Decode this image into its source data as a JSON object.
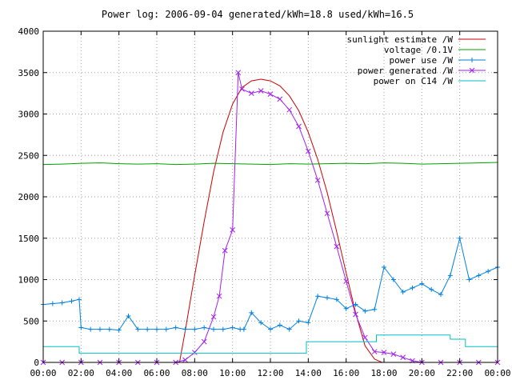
{
  "chart_data": {
    "type": "line",
    "title": "Power log: 2006-09-04 generated/kWh=18.8 used/kWh=16.5",
    "xlabel": "",
    "ylabel": "",
    "xlim": [
      0,
      24
    ],
    "ylim": [
      0,
      4000
    ],
    "x_ticks": [
      {
        "value": 0,
        "label": "00:00"
      },
      {
        "value": 2,
        "label": "02:00"
      },
      {
        "value": 4,
        "label": "04:00"
      },
      {
        "value": 6,
        "label": "06:00"
      },
      {
        "value": 8,
        "label": "08:00"
      },
      {
        "value": 10,
        "label": "10:00"
      },
      {
        "value": 12,
        "label": "12:00"
      },
      {
        "value": 14,
        "label": "14:00"
      },
      {
        "value": 16,
        "label": "16:00"
      },
      {
        "value": 18,
        "label": "18:00"
      },
      {
        "value": 20,
        "label": "20:00"
      },
      {
        "value": 22,
        "label": "22:00"
      },
      {
        "value": 24,
        "label": "00:00"
      }
    ],
    "y_ticks": [
      {
        "value": 0,
        "label": "0"
      },
      {
        "value": 500,
        "label": "500"
      },
      {
        "value": 1000,
        "label": "1000"
      },
      {
        "value": 1500,
        "label": "1500"
      },
      {
        "value": 2000,
        "label": "2000"
      },
      {
        "value": 2500,
        "label": "2500"
      },
      {
        "value": 3000,
        "label": "3000"
      },
      {
        "value": 3500,
        "label": "3500"
      },
      {
        "value": 4000,
        "label": "4000"
      }
    ],
    "grid": true,
    "legend_position": "top-right",
    "series": [
      {
        "name": "sunlight estimate /W",
        "style": "line",
        "color": "#cc0000",
        "x": [
          7.2,
          7.5,
          8.0,
          8.5,
          9.0,
          9.5,
          10.0,
          10.5,
          11.0,
          11.5,
          12.0,
          12.5,
          13.0,
          13.5,
          14.0,
          14.5,
          15.0,
          15.5,
          16.0,
          16.5,
          17.0,
          17.5,
          17.9
        ],
        "y": [
          0,
          380,
          1050,
          1700,
          2300,
          2780,
          3120,
          3320,
          3400,
          3420,
          3400,
          3340,
          3220,
          3040,
          2780,
          2450,
          2050,
          1580,
          1080,
          600,
          200,
          40,
          0
        ]
      },
      {
        "name": "voltage /0.1V",
        "style": "line",
        "color": "#00a000",
        "x": [
          0,
          1,
          2,
          3,
          4,
          5,
          6,
          7,
          8,
          9,
          10,
          11,
          12,
          13,
          14,
          15,
          16,
          17,
          18,
          19,
          20,
          21,
          22,
          23,
          24
        ],
        "y": [
          2390,
          2395,
          2405,
          2410,
          2400,
          2395,
          2400,
          2390,
          2395,
          2405,
          2400,
          2395,
          2390,
          2400,
          2395,
          2400,
          2405,
          2400,
          2410,
          2405,
          2395,
          2400,
          2405,
          2410,
          2415
        ]
      },
      {
        "name": "power use /W",
        "style": "linespoints-plus",
        "color": "#0080e0",
        "x": [
          0,
          0.5,
          1.0,
          1.5,
          1.9,
          2.0,
          2.5,
          3.0,
          3.5,
          4.0,
          4.5,
          5.0,
          5.5,
          6.0,
          6.5,
          7.0,
          7.5,
          8.0,
          8.5,
          9.0,
          9.5,
          10.0,
          10.4,
          10.6,
          11.0,
          11.5,
          12.0,
          12.5,
          13.0,
          13.5,
          14.0,
          14.5,
          15.0,
          15.5,
          16.0,
          16.5,
          17.0,
          17.5,
          18.0,
          18.5,
          19.0,
          19.5,
          20.0,
          20.5,
          21.0,
          21.5,
          22.0,
          22.5,
          23.0,
          23.5,
          24.0
        ],
        "y": [
          700,
          710,
          720,
          740,
          760,
          420,
          400,
          400,
          400,
          390,
          560,
          400,
          400,
          400,
          400,
          420,
          400,
          400,
          420,
          400,
          400,
          420,
          400,
          400,
          600,
          480,
          400,
          450,
          400,
          500,
          480,
          800,
          780,
          760,
          650,
          700,
          620,
          640,
          1150,
          1000,
          850,
          900,
          950,
          880,
          820,
          1050,
          1500,
          1000,
          1050,
          1100,
          1150
        ]
      },
      {
        "name": "power generated /W",
        "style": "linespoints-cross",
        "color": "#a020f0",
        "x": [
          0,
          1,
          2,
          3,
          4,
          5,
          6,
          7.0,
          7.5,
          8.0,
          8.5,
          9.0,
          9.3,
          9.6,
          10.0,
          10.3,
          10.5,
          11.0,
          11.5,
          12.0,
          12.5,
          13.0,
          13.5,
          14.0,
          14.5,
          15.0,
          15.5,
          16.0,
          16.5,
          17.0,
          17.5,
          18.0,
          18.5,
          19.0,
          19.5,
          20.0,
          21,
          22,
          23,
          24
        ],
        "y": [
          0,
          0,
          0,
          0,
          0,
          0,
          0,
          0,
          30,
          120,
          250,
          550,
          800,
          1350,
          1600,
          3500,
          3300,
          3250,
          3280,
          3240,
          3180,
          3050,
          2850,
          2550,
          2200,
          1800,
          1400,
          980,
          580,
          300,
          130,
          120,
          100,
          60,
          20,
          0,
          0,
          0,
          0,
          0
        ]
      },
      {
        "name": "power on C14 /W",
        "style": "line",
        "color": "#00c0c0",
        "x": [
          0,
          1.9,
          1.9,
          7.0,
          13.9,
          13.9,
          17.6,
          17.6,
          21.5,
          21.5,
          22.3,
          22.3,
          24.0
        ],
        "y": [
          190,
          190,
          110,
          110,
          110,
          250,
          250,
          330,
          330,
          280,
          280,
          190,
          190
        ]
      }
    ]
  }
}
